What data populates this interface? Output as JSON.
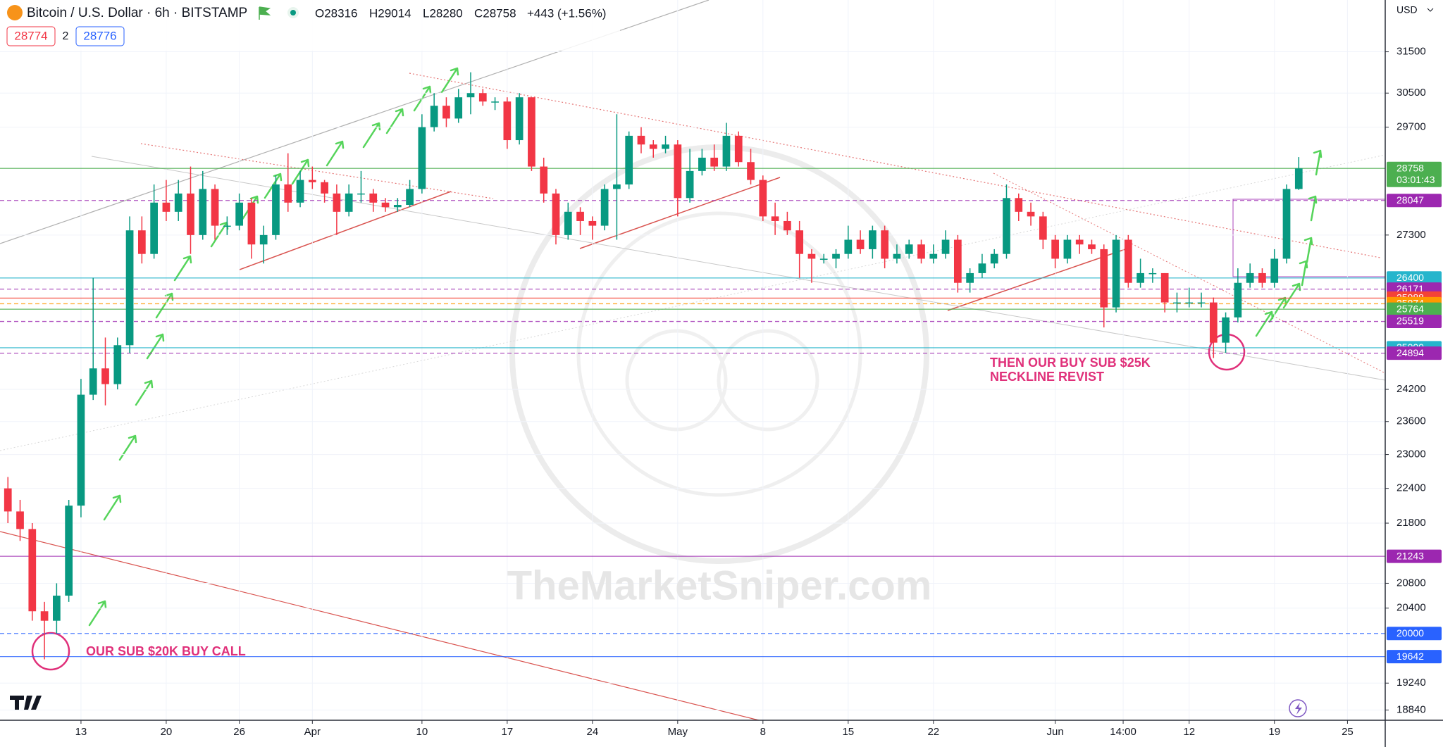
{
  "header": {
    "title": "Bitcoin / U.S. Dollar · 6h · BITSTAMP",
    "open": "O28316",
    "high": "H29014",
    "low": "L28280",
    "close": "C28758",
    "change": "+443 (+1.56%)",
    "bid": "28774",
    "spread": "2",
    "ask": "28776",
    "currency": "USD"
  },
  "chart_data": {
    "type": "candlestick",
    "log_scale": true,
    "grid": true,
    "up_color": "#089981",
    "down_color": "#f23645",
    "x": [
      7,
      8,
      9,
      10,
      11,
      12,
      13,
      14,
      15,
      16,
      17,
      18,
      19,
      20,
      21,
      22,
      23,
      24,
      25,
      26,
      27,
      28,
      29,
      30,
      31,
      32,
      33,
      34,
      35,
      36,
      37,
      38,
      39,
      40,
      41,
      42,
      43,
      44,
      45,
      46,
      47,
      48,
      49,
      50,
      51,
      52,
      53,
      54,
      55,
      56,
      57,
      58,
      59,
      60,
      61,
      62,
      63,
      64,
      65,
      66,
      67,
      68,
      69,
      70,
      71,
      72,
      73,
      74,
      75,
      76,
      77,
      78,
      79,
      80,
      81,
      82,
      83,
      84,
      85,
      86,
      87,
      88,
      89,
      90,
      91,
      92,
      93,
      94,
      95,
      96,
      97,
      98,
      99,
      100,
      101,
      102,
      103,
      104,
      105,
      106,
      107,
      108,
      109,
      110,
      111,
      112,
      113
    ],
    "open": [
      22400,
      22000,
      21700,
      20350,
      20200,
      20600,
      22100,
      24100,
      24600,
      24300,
      25050,
      27400,
      26900,
      28000,
      27800,
      28200,
      27300,
      28300,
      27500,
      27500,
      28000,
      27100,
      27300,
      28400,
      28000,
      28500,
      28450,
      28200,
      27800,
      28200,
      28200,
      28000,
      27900,
      27950,
      28300,
      29700,
      30200,
      29900,
      30400,
      30500,
      30300,
      30300,
      29400,
      30400,
      28800,
      28200,
      27300,
      27800,
      27600,
      27500,
      28300,
      28400,
      29500,
      29300,
      29200,
      29300,
      28100,
      28700,
      29000,
      28800,
      29500,
      28900,
      28500,
      27700,
      27600,
      27400,
      26900,
      26800,
      26800,
      26900,
      27200,
      27000,
      27400,
      26800,
      26900,
      27100,
      26800,
      26900,
      27200,
      26300,
      26500,
      26700,
      26900,
      28100,
      27800,
      27700,
      27200,
      26800,
      27200,
      27100,
      27000,
      25800,
      27200,
      26300,
      26500,
      26500,
      25900,
      25900,
      25900,
      25900,
      25100,
      25600,
      26300,
      26500,
      26300,
      26800,
      28300
    ],
    "high": [
      22600,
      22200,
      21800,
      20500,
      20800,
      22200,
      24400,
      26400,
      25200,
      25200,
      27700,
      27700,
      28400,
      28500,
      28500,
      28800,
      28700,
      28400,
      27700,
      28200,
      28100,
      27500,
      28600,
      29100,
      28700,
      28800,
      28500,
      28400,
      28400,
      28700,
      28300,
      28100,
      28100,
      28500,
      30000,
      30500,
      30400,
      30600,
      31000,
      30600,
      30400,
      30400,
      30500,
      30400,
      29000,
      28300,
      28000,
      27900,
      27700,
      28400,
      30000,
      29600,
      29700,
      29400,
      29500,
      29400,
      29200,
      29200,
      29300,
      29800,
      29600,
      29200,
      28600,
      28000,
      27800,
      27600,
      27000,
      26900,
      27000,
      27500,
      27400,
      27500,
      27500,
      27100,
      27200,
      27200,
      27100,
      27400,
      27300,
      26600,
      26900,
      27000,
      28400,
      28200,
      28000,
      27800,
      27300,
      27300,
      27300,
      27200,
      27100,
      27300,
      27300,
      26800,
      26600,
      26500,
      26100,
      26200,
      26100,
      26000,
      25700,
      26600,
      26700,
      26600,
      27000,
      28400,
      29014
    ],
    "low": [
      21800,
      21500,
      20200,
      19600,
      20000,
      20500,
      21900,
      24000,
      23900,
      24200,
      24900,
      26700,
      26800,
      27600,
      27600,
      26900,
      27200,
      27200,
      27300,
      27400,
      26800,
      26700,
      27200,
      27800,
      27900,
      28300,
      28000,
      27300,
      27700,
      28000,
      27800,
      27800,
      27800,
      27900,
      28200,
      29600,
      29700,
      29800,
      30000,
      30200,
      30100,
      29200,
      29300,
      28700,
      28000,
      27100,
      27200,
      27300,
      27200,
      27400,
      27200,
      28300,
      29100,
      29000,
      29100,
      27700,
      28000,
      28600,
      28700,
      28700,
      28800,
      28400,
      27600,
      27300,
      27300,
      26400,
      26300,
      26700,
      26600,
      26800,
      26900,
      26800,
      26600,
      26700,
      26800,
      26700,
      26700,
      26800,
      26100,
      26100,
      26400,
      26600,
      26800,
      27600,
      27500,
      27000,
      26600,
      26700,
      26900,
      26900,
      25400,
      25700,
      26200,
      26200,
      26300,
      25700,
      25700,
      25800,
      25800,
      24800,
      24900,
      25500,
      26200,
      26200,
      26200,
      26700,
      28280
    ],
    "close": [
      22000,
      21700,
      20350,
      20200,
      20600,
      22100,
      24100,
      24600,
      24300,
      25050,
      27400,
      26900,
      28000,
      27800,
      28200,
      27300,
      28300,
      27500,
      27500,
      28000,
      27100,
      27300,
      28400,
      28000,
      28500,
      28450,
      28200,
      27800,
      28200,
      28200,
      28000,
      27900,
      27950,
      28300,
      29700,
      30200,
      29900,
      30400,
      30500,
      30300,
      30300,
      29400,
      30400,
      28800,
      28200,
      27300,
      27800,
      27600,
      27500,
      28300,
      28400,
      29500,
      29300,
      29200,
      29300,
      28100,
      28700,
      29000,
      28800,
      29500,
      28900,
      28500,
      27700,
      27600,
      27400,
      26900,
      26800,
      26800,
      26900,
      27200,
      27000,
      27400,
      26800,
      26900,
      27100,
      26800,
      26900,
      27200,
      26300,
      26500,
      26700,
      26900,
      28100,
      27800,
      27700,
      27200,
      26800,
      27200,
      27100,
      27000,
      25800,
      27200,
      26300,
      26500,
      26500,
      25900,
      25900,
      25900,
      25900,
      25100,
      25600,
      26300,
      26500,
      26300,
      26800,
      28300,
      28758
    ],
    "xlim": [
      6.35,
      120.1
    ],
    "xticks": [
      {
        "value": 13,
        "label": "13"
      },
      {
        "value": 20,
        "label": "20"
      },
      {
        "value": 26,
        "label": "26"
      },
      {
        "value": 32,
        "label": "Apr"
      },
      {
        "value": 41,
        "label": "10"
      },
      {
        "value": 48,
        "label": "17"
      },
      {
        "value": 55,
        "label": "24"
      },
      {
        "value": 62,
        "label": "May"
      },
      {
        "value": 69,
        "label": "8"
      },
      {
        "value": 76,
        "label": "15"
      },
      {
        "value": 83,
        "label": "22"
      },
      {
        "value": 93,
        "label": "Jun"
      },
      {
        "value": 98.58,
        "label": "14:00"
      },
      {
        "value": 104,
        "label": "12"
      },
      {
        "value": 111,
        "label": "19"
      },
      {
        "value": 117,
        "label": "25"
      }
    ],
    "ylim": [
      18690,
      32800
    ],
    "yticks": [
      31500,
      30500,
      29700,
      27300,
      24200,
      23600,
      23000,
      22400,
      21800,
      20800,
      20400,
      19240,
      18840
    ],
    "countdown": "03:01:43",
    "price_levels": [
      {
        "value": 28758,
        "color": "#4caf50"
      },
      {
        "value": 28047,
        "color": "#9c27b0"
      },
      {
        "value": 26400,
        "color": "#26b5cc"
      },
      {
        "value": 26171,
        "color": "#9c27b0"
      },
      {
        "value": 25988,
        "color": "#f44336"
      },
      {
        "value": 25874,
        "color": "#ff9800"
      },
      {
        "value": 25764,
        "color": "#4caf50"
      },
      {
        "value": 25519,
        "color": "#9c27b0"
      },
      {
        "value": 25000,
        "color": "#26b5cc"
      },
      {
        "value": 24894,
        "color": "#9c27b0"
      },
      {
        "value": 21243,
        "color": "#9c27b0"
      },
      {
        "value": 20000,
        "color": "#2962ff"
      },
      {
        "value": 19642,
        "color": "#2962ff"
      }
    ],
    "annotations": [
      "OUR SUB $20K BUY CALL",
      "THEN OUR BUY SUB $25K",
      "NECKLINE REVIST"
    ],
    "watermark": "TheMarketSniper.com"
  }
}
